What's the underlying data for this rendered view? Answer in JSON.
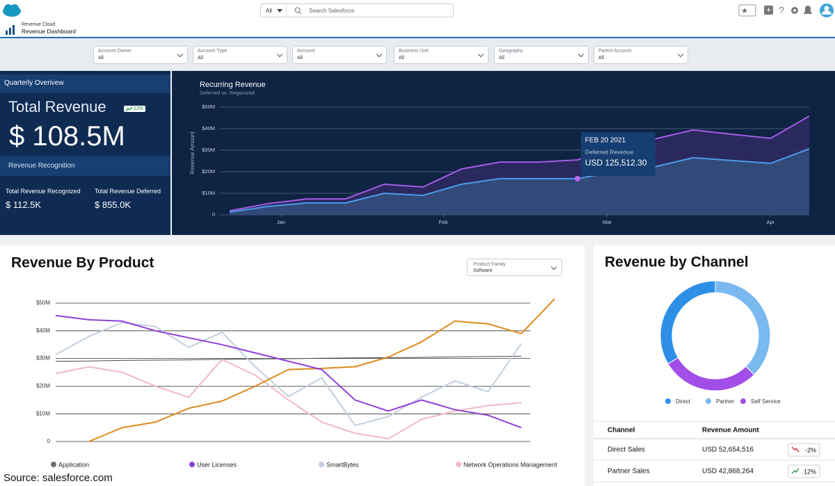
{
  "header": {
    "search_scope": "All",
    "search_placeholder": "Search Salesforce",
    "app_name": "Revenue Cloud",
    "page_title": "Revenue Dashboard"
  },
  "filters": [
    {
      "label": "Account  Owner",
      "value": "All"
    },
    {
      "label": "Account Type",
      "value": "All"
    },
    {
      "label": "Account",
      "value": "All"
    },
    {
      "label": "Business Unit",
      "value": "All"
    },
    {
      "label": "Geography",
      "value": "All"
    },
    {
      "label": "Parent Account",
      "value": "All"
    }
  ],
  "overview": {
    "title": "Quarterly Overivew",
    "total_label": "Total Revenue",
    "badge": "12%",
    "total_value": "$ 108.5M",
    "section": "Revenue Recognition",
    "recognized_label": "Total Revenue Recognized",
    "recognized_value": "$ 112.5K",
    "deferred_label": "Total Revenue Deferred",
    "deferred_value": "$ 855.0K"
  },
  "chart_data": [
    {
      "type": "area",
      "title": "Recurring Revenue",
      "subtitle": "Deferred vs. Regonized",
      "y_label": "Revenue Amount",
      "categories": [
        null,
        null,
        null,
        null,
        null,
        null,
        null,
        null,
        null,
        null,
        null,
        null,
        null,
        null,
        null,
        null
      ],
      "series": [
        {
          "color": "#a35ce6",
          "values": [
            1.9,
            5.2,
            7.4,
            7.4,
            14.2,
            12.9,
            21.3,
            24.5,
            24.5,
            25.5,
            31.3,
            35.2,
            39.4,
            37.4,
            35.5,
            45.8
          ]
        },
        {
          "color": "#4c9be8",
          "values": [
            1.3,
            3.9,
            5.5,
            5.5,
            10,
            9,
            14.2,
            16.8,
            16.8,
            16.8,
            20,
            22.3,
            26.5,
            25.2,
            23.9,
            30.6
          ]
        }
      ],
      "xlim": [
        0,
        15
      ],
      "xticks": [
        {
          "value": 1.33,
          "label": "Jan"
        },
        {
          "value": 5.53,
          "label": "Feb"
        },
        {
          "value": 9.77,
          "label": "Mar"
        },
        {
          "value": 14,
          "label": "Apr"
        }
      ],
      "ylim": [
        0,
        50
      ],
      "yticks": [
        {
          "value": 0,
          "label": "0"
        },
        {
          "value": 10,
          "label": "$10M"
        },
        {
          "value": 20,
          "label": "$20M"
        },
        {
          "value": 30,
          "label": "$30M"
        },
        {
          "value": 40,
          "label": "$40M"
        },
        {
          "value": 50,
          "label": "$50M"
        }
      ],
      "grid": true,
      "tooltip": {
        "series": 1,
        "index": 9,
        "date": "FEB 20 2021",
        "label": "Deferred Revenue",
        "value": "USD 125,512.30"
      }
    },
    {
      "type": "line",
      "title": "Revenue By Product",
      "categories": [
        null,
        null,
        null,
        null,
        null,
        null,
        null,
        null,
        null,
        null,
        null,
        null,
        null,
        null,
        null,
        null
      ],
      "series": [
        {
          "name": "Application",
          "color": "#6d6d6d",
          "line_color": "#4a4a4a",
          "values": [
            29,
            29.1,
            29.3,
            29.4,
            29.5,
            29.7,
            29.8,
            29.9,
            30.1,
            30.2,
            30.3,
            30.4,
            30.6,
            30.7,
            30.8,
            null
          ]
        },
        {
          "name": "User Licenses",
          "color": "#8e3fd9",
          "values": [
            45.5,
            44,
            43.5,
            40,
            37.5,
            35,
            32,
            29,
            26,
            15,
            11,
            15,
            11.5,
            9.5,
            5,
            null
          ]
        },
        {
          "name": "SmartBytes",
          "color": "#c3cfdf",
          "values": [
            31.4,
            38,
            43,
            41.5,
            34,
            39.5,
            27,
            16.3,
            23,
            5.8,
            9,
            16,
            21.9,
            18,
            35.4,
            null
          ]
        },
        {
          "name": "Network Operations Management",
          "color": "#f2b8c6",
          "values": [
            24.6,
            27,
            25,
            20,
            16,
            29.6,
            24,
            15,
            7,
            3,
            1,
            8,
            11,
            13,
            14,
            null
          ]
        },
        {
          "color": "#de8a1a",
          "values": [
            null,
            0,
            5,
            7,
            12,
            14.6,
            20,
            26,
            26.4,
            27,
            30.5,
            36,
            43.5,
            42.5,
            39,
            51.5
          ]
        }
      ],
      "ylim": [
        0,
        50
      ],
      "yticks": [
        {
          "value": 0,
          "label": "0"
        },
        {
          "value": 10,
          "label": "$10M"
        },
        {
          "value": 20,
          "label": "$20M"
        },
        {
          "value": 30,
          "label": "$30M"
        },
        {
          "value": 40,
          "label": "$40M"
        },
        {
          "value": 50,
          "label": "$50M"
        }
      ],
      "grid": true,
      "filter": {
        "label": "Product Family",
        "value": "Software"
      }
    },
    {
      "type": "donut",
      "title": "Revenue by Channel",
      "categories": [
        "Direct",
        "Partner",
        "Self Service"
      ],
      "values": [
        33.5,
        37.5,
        29
      ],
      "colors": [
        "#2e8fe6",
        "#7ab8f0",
        "#a24ee8"
      ]
    }
  ],
  "channel_table": {
    "columns": [
      "Channel",
      "Revenue Amount"
    ],
    "rows": [
      [
        "Direct Sales",
        "USD 52,654,516",
        "-2%"
      ],
      [
        "Partner Sales",
        "USD 42,868,264",
        "12%"
      ]
    ]
  },
  "source": "Source: salesforce.com"
}
